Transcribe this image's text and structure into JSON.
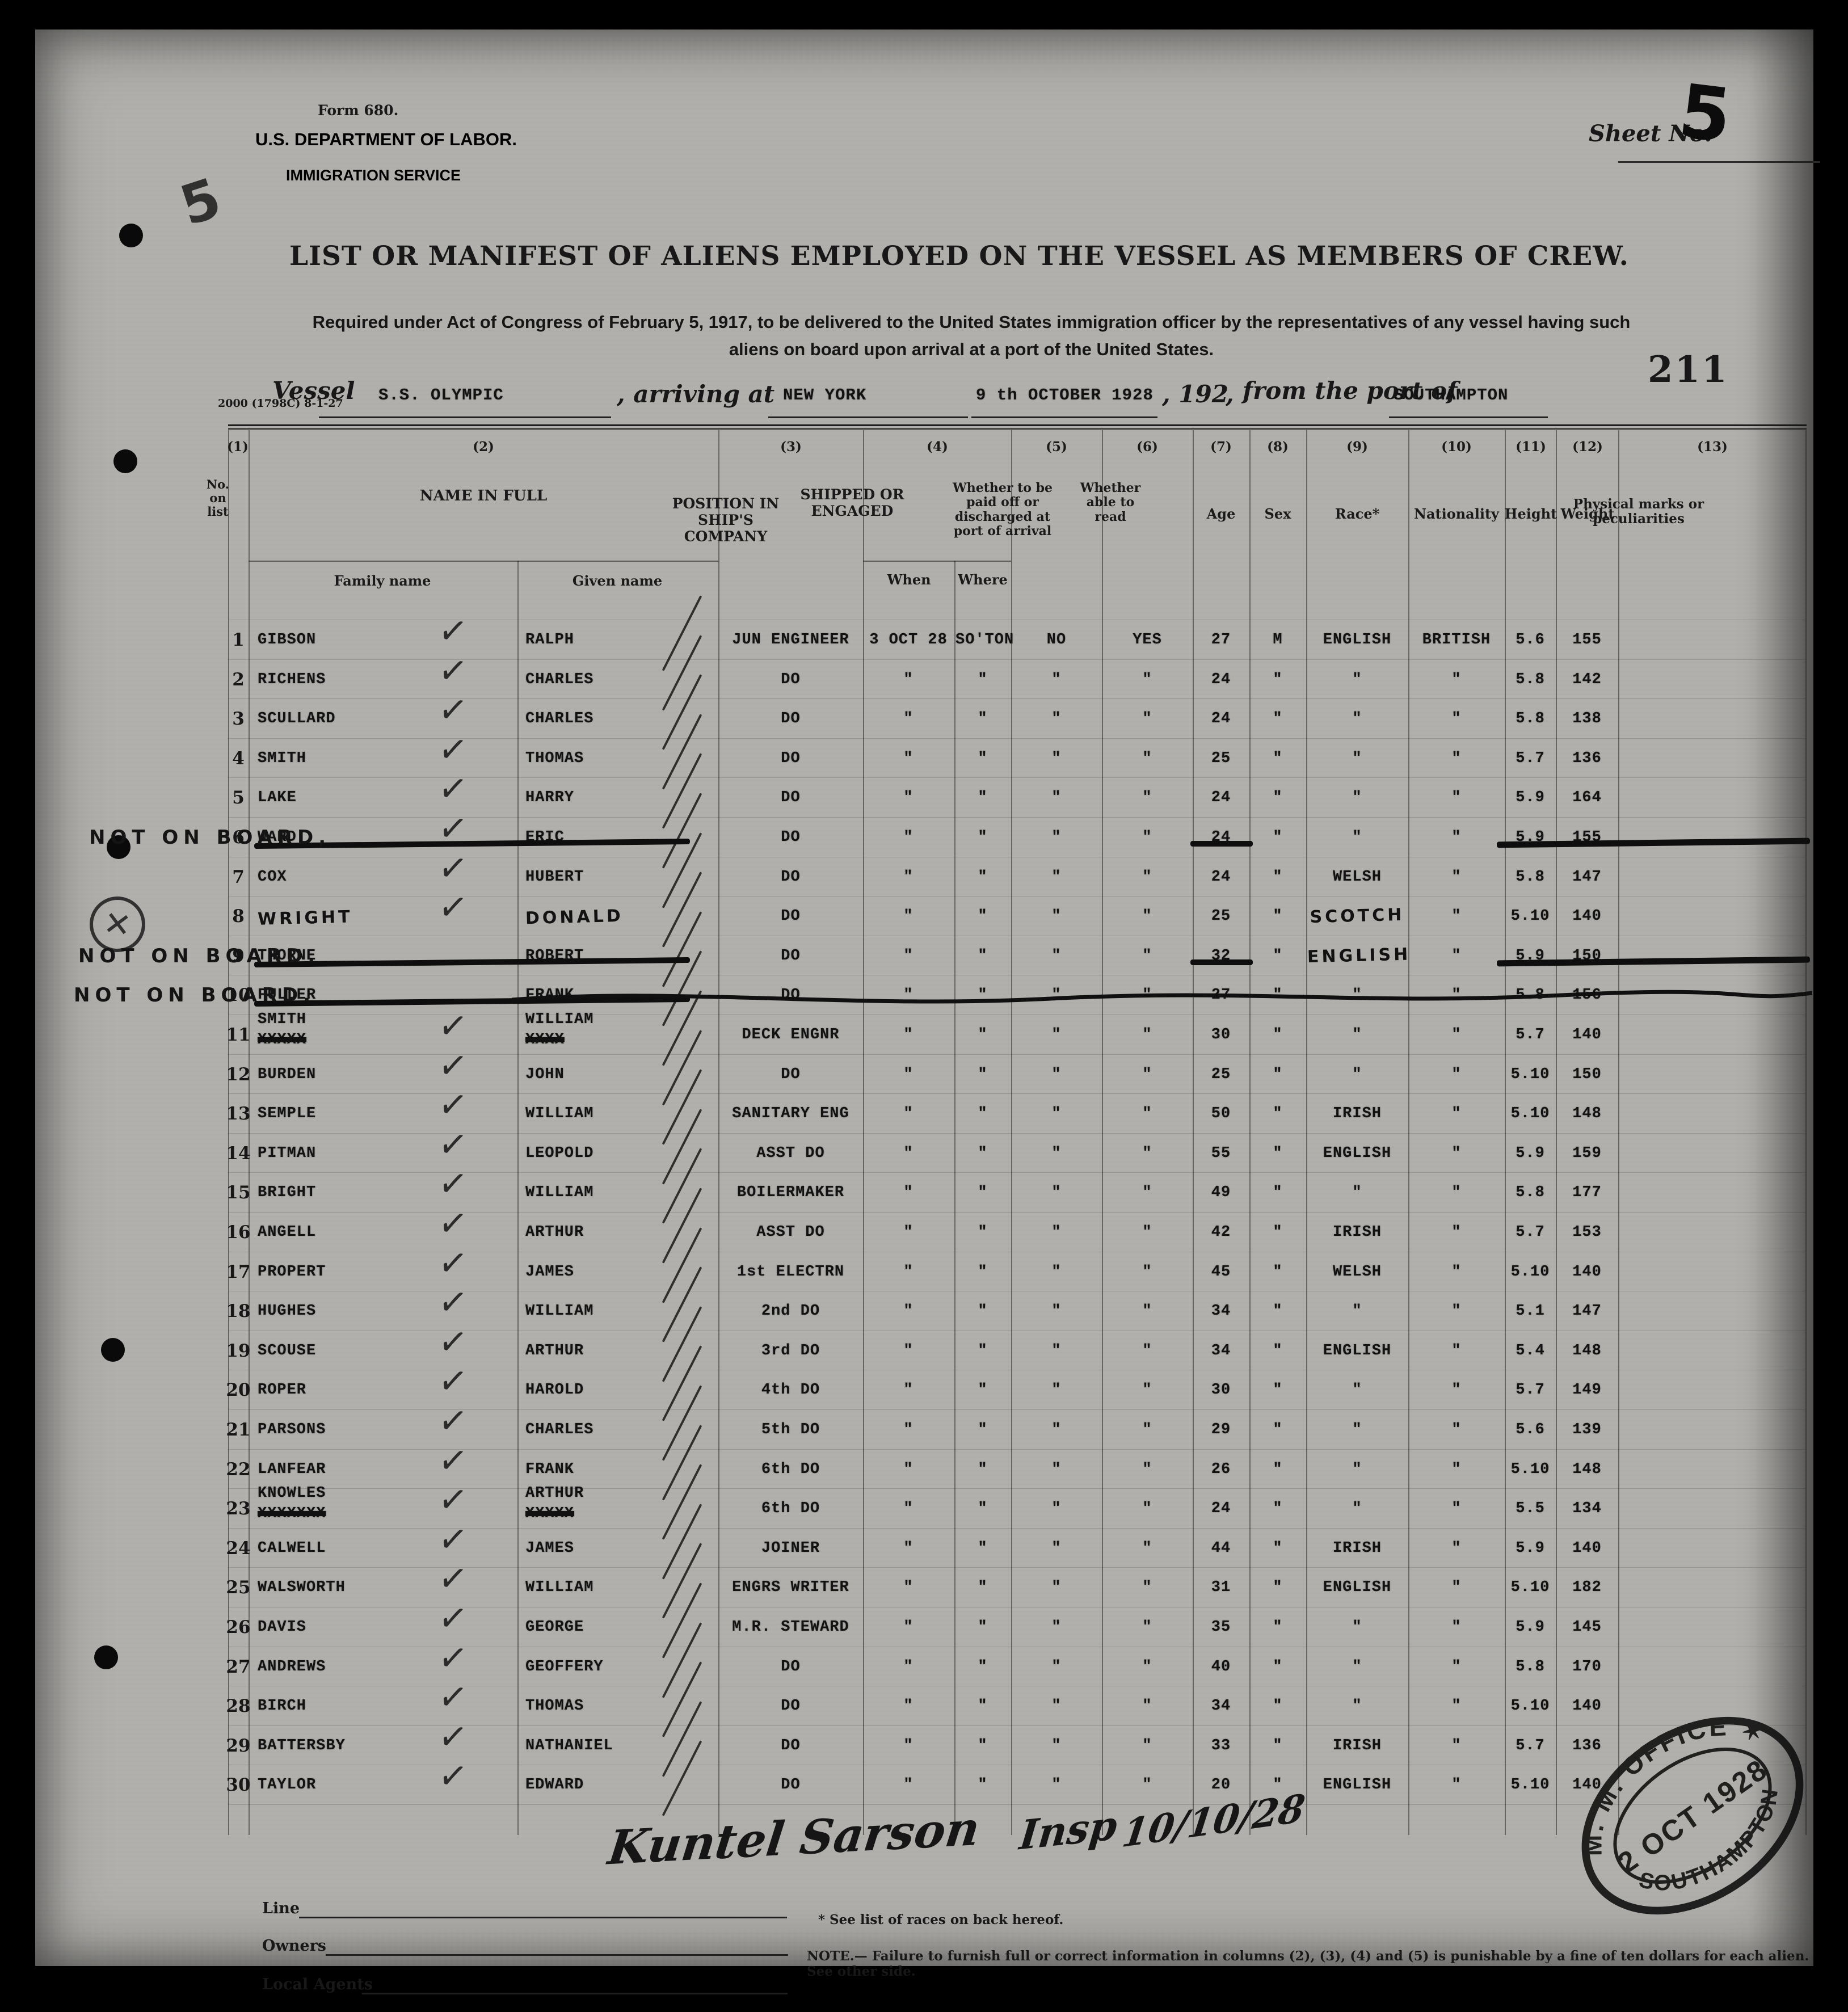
{
  "form": {
    "form_no": "Form 680.",
    "department": "U.S. DEPARTMENT OF LABOR.",
    "service": "IMMIGRATION SERVICE",
    "sheet_label": "Sheet No.",
    "sheet_value": "5",
    "title": "LIST OR MANIFEST OF ALIENS EMPLOYED ON THE VESSEL AS MEMBERS OF CREW.",
    "subtitle_line1": "Required under Act of Congress of February 5, 1917, to be delivered to the United States immigration officer by the representatives of any vessel having such",
    "subtitle_line2": "aliens on board upon arrival at a port of the United States.",
    "edition": "2000 (1798C) 8-1-27",
    "page_stamp": "211",
    "margin_mark": "5"
  },
  "vessel_line": {
    "vessel_label": "Vessel",
    "vessel_value": "S.S. OLYMPIC",
    "arriving_label": ", arriving at",
    "arriving_value": "NEW YORK",
    "date_value": "9 th OCTOBER 1928",
    "year_label": ", 192",
    "comma": ",",
    "port_label": "from the port of",
    "port_value": "SOUTHAMPTON"
  },
  "table": {
    "col_numbers": [
      "(1)",
      "(2)",
      "(3)",
      "(4)",
      "(5)",
      "(6)",
      "(7)",
      "(8)",
      "(9)",
      "(10)",
      "(11)",
      "(12)",
      "(13)"
    ],
    "header": {
      "no_on_list": "No. on list",
      "name_in_full": "NAME IN FULL",
      "family_name": "Family name",
      "given_name": "Given name",
      "position": "POSITION IN SHIP'S COMPANY",
      "shipped": "SHIPPED OR ENGAGED",
      "when": "When",
      "where": "Where",
      "paid": "Whether to be paid off or discharged at port of arrival",
      "read": "Whether able to read",
      "age": "Age",
      "sex": "Sex",
      "race": "Race*",
      "nationality": "Nationality",
      "height": "Height",
      "weight": "Weight",
      "marks": "Physical marks or peculiarities"
    },
    "rows": [
      {
        "no": "1",
        "family": "GIBSON",
        "given": "RALPH",
        "position": "JUN ENGINEER",
        "when": "3 OCT 28",
        "where": "SO'TON",
        "paid": "NO",
        "read": "YES",
        "age": "27",
        "sex": "M",
        "race": "ENGLISH",
        "nationality": "BRITISH",
        "height": "5.6",
        "weight": "155",
        "check": true
      },
      {
        "no": "2",
        "family": "RICHENS",
        "given": "CHARLES",
        "position": "DO",
        "when": "\"",
        "where": "\"",
        "paid": "\"",
        "read": "\"",
        "age": "24",
        "sex": "\"",
        "race": "\"",
        "nationality": "\"",
        "height": "5.8",
        "weight": "142",
        "check": true
      },
      {
        "no": "3",
        "family": "SCULLARD",
        "given": "CHARLES",
        "position": "DO",
        "when": "\"",
        "where": "\"",
        "paid": "\"",
        "read": "\"",
        "age": "24",
        "sex": "\"",
        "race": "\"",
        "nationality": "\"",
        "height": "5.8",
        "weight": "138",
        "check": true
      },
      {
        "no": "4",
        "family": "SMITH",
        "given": "THOMAS",
        "position": "DO",
        "when": "\"",
        "where": "\"",
        "paid": "\"",
        "read": "\"",
        "age": "25",
        "sex": "\"",
        "race": "\"",
        "nationality": "\"",
        "height": "5.7",
        "weight": "136",
        "check": true
      },
      {
        "no": "5",
        "family": "LAKE",
        "given": "HARRY",
        "position": "DO",
        "when": "\"",
        "where": "\"",
        "paid": "\"",
        "read": "\"",
        "age": "24",
        "sex": "\"",
        "race": "\"",
        "nationality": "\"",
        "height": "5.9",
        "weight": "164",
        "check": true
      },
      {
        "no": "6",
        "family": "WARD",
        "given": "ERIC",
        "position": "DO",
        "when": "\"",
        "where": "\"",
        "paid": "\"",
        "read": "\"",
        "age": "24",
        "sex": "\"",
        "race": "\"",
        "nationality": "\"",
        "height": "5.9",
        "weight": "155",
        "check": true,
        "strike": "bars",
        "not_on_board": "NOT ON BOARD,"
      },
      {
        "no": "7",
        "family": "COX",
        "given": "HUBERT",
        "position": "DO",
        "when": "\"",
        "where": "\"",
        "paid": "\"",
        "read": "\"",
        "age": "24",
        "sex": "\"",
        "race": "WELSH",
        "nationality": "\"",
        "height": "5.8",
        "weight": "147",
        "check": true
      },
      {
        "no": "8",
        "family": "WRIGHT",
        "given": "DONALD",
        "position": "DO",
        "when": "\"",
        "where": "\"",
        "paid": "\"",
        "read": "\"",
        "age": "25",
        "sex": "\"",
        "race": "SCOTCH",
        "nationality": "\"",
        "height": "5.10",
        "weight": "140",
        "check": true,
        "hw": [
          "family",
          "given",
          "race"
        ]
      },
      {
        "no": "9",
        "family": "THORNE",
        "given": "ROBERT",
        "position": "DO",
        "when": "\"",
        "where": "\"",
        "paid": "\"",
        "read": "\"",
        "age": "32",
        "sex": "\"",
        "race": "ENGLISH",
        "nationality": "\"",
        "height": "5.9",
        "weight": "150",
        "strike": "bars",
        "not_on_board": "NOT ON BOARD.",
        "hw": [
          "race"
        ]
      },
      {
        "no": "10",
        "family": "FULLER",
        "given": "FRANK",
        "position": "DO",
        "when": "\"",
        "where": "\"",
        "paid": "\"",
        "read": "\"",
        "age": "27",
        "sex": "\"",
        "race": "\"",
        "nationality": "\"",
        "height": "5.8",
        "weight": "156",
        "strike": "wavy",
        "not_on_board": "NOT ON BOARD."
      },
      {
        "no": "11",
        "family": "SMITH",
        "family_struck": "XXXXX",
        "given": "WILLIAM",
        "given_struck": "XXXX",
        "position": "DECK ENGNR",
        "when": "\"",
        "where": "\"",
        "paid": "\"",
        "read": "\"",
        "age": "30",
        "sex": "\"",
        "race": "\"",
        "nationality": "\"",
        "height": "5.7",
        "weight": "140",
        "check": true
      },
      {
        "no": "12",
        "family": "BURDEN",
        "given": "JOHN",
        "position": "DO",
        "when": "\"",
        "where": "\"",
        "paid": "\"",
        "read": "\"",
        "age": "25",
        "sex": "\"",
        "race": "\"",
        "nationality": "\"",
        "height": "5.10",
        "weight": "150",
        "check": true
      },
      {
        "no": "13",
        "family": "SEMPLE",
        "given": "WILLIAM",
        "position": "SANITARY ENG",
        "when": "\"",
        "where": "\"",
        "paid": "\"",
        "read": "\"",
        "age": "50",
        "sex": "\"",
        "race": "IRISH",
        "nationality": "\"",
        "height": "5.10",
        "weight": "148",
        "check": true
      },
      {
        "no": "14",
        "family": "PITMAN",
        "given": "LEOPOLD",
        "position": "ASST   DO",
        "when": "\"",
        "where": "\"",
        "paid": "\"",
        "read": "\"",
        "age": "55",
        "sex": "\"",
        "race": "ENGLISH",
        "nationality": "\"",
        "height": "5.9",
        "weight": "159",
        "check": true
      },
      {
        "no": "15",
        "family": "BRIGHT",
        "given": "WILLIAM",
        "position": "BOILERMAKER",
        "when": "\"",
        "where": "\"",
        "paid": "\"",
        "read": "\"",
        "age": "49",
        "sex": "\"",
        "race": "\"",
        "nationality": "\"",
        "height": "5.8",
        "weight": "177",
        "check": true
      },
      {
        "no": "16",
        "family": "ANGELL",
        "given": "ARTHUR",
        "position": "ASST   DO",
        "when": "\"",
        "where": "\"",
        "paid": "\"",
        "read": "\"",
        "age": "42",
        "sex": "\"",
        "race": "IRISH",
        "nationality": "\"",
        "height": "5.7",
        "weight": "153",
        "check": true
      },
      {
        "no": "17",
        "family": "PROPERT",
        "given": "JAMES",
        "position": "1st ELECTRN",
        "when": "\"",
        "where": "\"",
        "paid": "\"",
        "read": "\"",
        "age": "45",
        "sex": "\"",
        "race": "WELSH",
        "nationality": "\"",
        "height": "5.10",
        "weight": "140",
        "check": true
      },
      {
        "no": "18",
        "family": "HUGHES",
        "given": "WILLIAM",
        "position": "2nd   DO",
        "when": "\"",
        "where": "\"",
        "paid": "\"",
        "read": "\"",
        "age": "34",
        "sex": "\"",
        "race": "\"",
        "nationality": "\"",
        "height": "5.1",
        "weight": "147",
        "check": true
      },
      {
        "no": "19",
        "family": "SCOUSE",
        "given": "ARTHUR",
        "position": "3rd   DO",
        "when": "\"",
        "where": "\"",
        "paid": "\"",
        "read": "\"",
        "age": "34",
        "sex": "\"",
        "race": "ENGLISH",
        "nationality": "\"",
        "height": "5.4",
        "weight": "148",
        "check": true
      },
      {
        "no": "20",
        "family": "ROPER",
        "given": "HAROLD",
        "position": "4th   DO",
        "when": "\"",
        "where": "\"",
        "paid": "\"",
        "read": "\"",
        "age": "30",
        "sex": "\"",
        "race": "\"",
        "nationality": "\"",
        "height": "5.7",
        "weight": "149",
        "check": true
      },
      {
        "no": "21",
        "family": "PARSONS",
        "given": "CHARLES",
        "position": "5th   DO",
        "when": "\"",
        "where": "\"",
        "paid": "\"",
        "read": "\"",
        "age": "29",
        "sex": "\"",
        "race": "\"",
        "nationality": "\"",
        "height": "5.6",
        "weight": "139",
        "check": true
      },
      {
        "no": "22",
        "family": "LANFEAR",
        "given": "FRANK",
        "position": "6th   DO",
        "when": "\"",
        "where": "\"",
        "paid": "\"",
        "read": "\"",
        "age": "26",
        "sex": "\"",
        "race": "\"",
        "nationality": "\"",
        "height": "5.10",
        "weight": "148",
        "check": true
      },
      {
        "no": "23",
        "family": "KNOWLES",
        "family_struck": "XXXXXXX",
        "given": "ARTHUR",
        "given_struck": "XXXXX",
        "position": "6th   DO",
        "when": "\"",
        "where": "\"",
        "paid": "\"",
        "read": "\"",
        "age": "24",
        "sex": "\"",
        "race": "\"",
        "nationality": "\"",
        "height": "5.5",
        "weight": "134",
        "check": true
      },
      {
        "no": "24",
        "family": "CALWELL",
        "given": "JAMES",
        "position": "JOINER",
        "when": "\"",
        "where": "\"",
        "paid": "\"",
        "read": "\"",
        "age": "44",
        "sex": "\"",
        "race": "IRISH",
        "nationality": "\"",
        "height": "5.9",
        "weight": "140",
        "check": true
      },
      {
        "no": "25",
        "family": "WALSWORTH",
        "given": "WILLIAM",
        "position": "ENGRS WRITER",
        "when": "\"",
        "where": "\"",
        "paid": "\"",
        "read": "\"",
        "age": "31",
        "sex": "\"",
        "race": "ENGLISH",
        "nationality": "\"",
        "height": "5.10",
        "weight": "182",
        "check": true
      },
      {
        "no": "26",
        "family": "DAVIS",
        "given": "GEORGE",
        "position": "M.R. STEWARD",
        "when": "\"",
        "where": "\"",
        "paid": "\"",
        "read": "\"",
        "age": "35",
        "sex": "\"",
        "race": "\"",
        "nationality": "\"",
        "height": "5.9",
        "weight": "145",
        "check": true
      },
      {
        "no": "27",
        "family": "ANDREWS",
        "given": "GEOFFERY",
        "position": "DO",
        "when": "\"",
        "where": "\"",
        "paid": "\"",
        "read": "\"",
        "age": "40",
        "sex": "\"",
        "race": "\"",
        "nationality": "\"",
        "height": "5.8",
        "weight": "170",
        "check": true
      },
      {
        "no": "28",
        "family": "BIRCH",
        "given": "THOMAS",
        "position": "DO",
        "when": "\"",
        "where": "\"",
        "paid": "\"",
        "read": "\"",
        "age": "34",
        "sex": "\"",
        "race": "\"",
        "nationality": "\"",
        "height": "5.10",
        "weight": "140",
        "check": true
      },
      {
        "no": "29",
        "family": "BATTERSBY",
        "given": "NATHANIEL",
        "position": "DO",
        "when": "\"",
        "where": "\"",
        "paid": "\"",
        "read": "\"",
        "age": "33",
        "sex": "\"",
        "race": "IRISH",
        "nationality": "\"",
        "height": "5.7",
        "weight": "136",
        "check": true
      },
      {
        "no": "30",
        "family": "TAYLOR",
        "given": "EDWARD",
        "position": "DO",
        "when": "\"",
        "where": "\"",
        "paid": "\"",
        "read": "\"",
        "age": "20",
        "sex": "\"",
        "race": "ENGLISH",
        "nationality": "\"",
        "height": "5.10",
        "weight": "140",
        "check": true
      }
    ]
  },
  "annotations": {
    "signature": "Kuntel Sarson",
    "signature_note": "Insp",
    "signature_date": "10/10/28"
  },
  "footer": {
    "line_label": "Line",
    "owners_label": "Owners",
    "agents_label": "Local Agents",
    "races_note": "* See list of races on back hereof.",
    "penalty_note": "NOTE.— Failure to furnish full or correct information in columns (2), (3), (4)  and (5) is punishable by a fine of ten dollars for each alien.   See other side."
  },
  "stamp": {
    "top": "M. M. OFFICE  ✶",
    "middle": "2 OCT 1928",
    "bottom": "SOUTHAMPTON"
  }
}
